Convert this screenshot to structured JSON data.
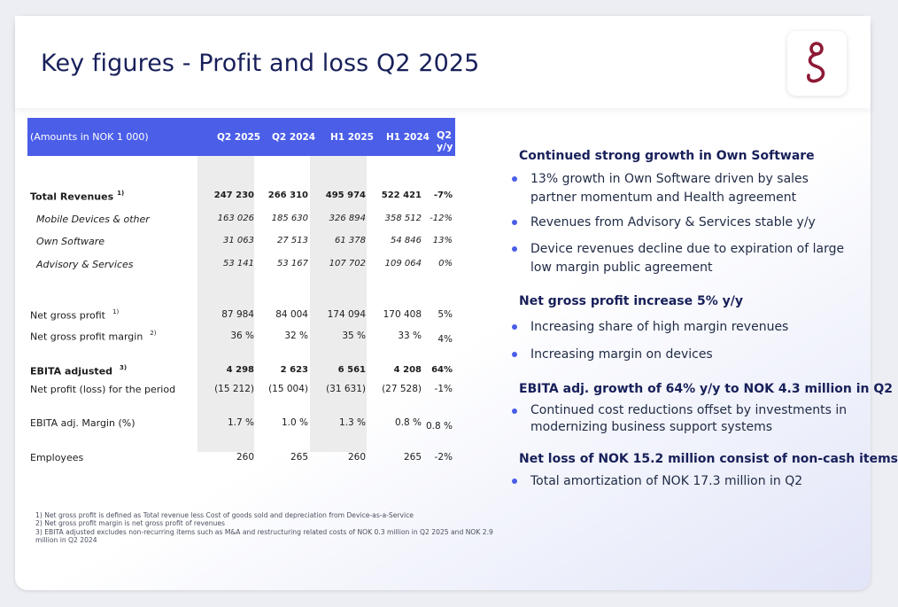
{
  "title": "Key figures - Profit and loss Q2 2025",
  "accent_color": "#4a5ee8",
  "logo_color": "#8e1a36",
  "table": {
    "header": {
      "label": "(Amounts in NOK 1 000)",
      "columns": [
        "Q2 2025",
        "Q2 2024",
        "H1 2025",
        "H1 2024",
        "Q2 y/y"
      ]
    },
    "rows": [
      {
        "label": "Total Revenues",
        "note": "1)",
        "values": [
          "247 230",
          "266 310",
          "495 974",
          "522 421",
          "-7%"
        ]
      },
      {
        "label": "Mobile Devices & other",
        "note": "",
        "values": [
          "163 026",
          "185 630",
          "326 894",
          "358 512",
          "-12%"
        ]
      },
      {
        "label": "Own Software",
        "note": "",
        "values": [
          "31 063",
          "27 513",
          "61 378",
          "54 846",
          "13%"
        ]
      },
      {
        "label": "Advisory & Services",
        "note": "",
        "values": [
          "53 141",
          "53 167",
          "107 702",
          "109 064",
          "0%"
        ]
      },
      {
        "label": "Net gross profit",
        "note": "1)",
        "values": [
          "87 984",
          "84 004",
          "174 094",
          "170 408",
          "5%"
        ]
      },
      {
        "label": "Net gross profit margin",
        "note": "2)",
        "values": [
          "36 %",
          "32 %",
          "35 %",
          "33 %",
          "4%"
        ]
      },
      {
        "label": "EBITA adjusted",
        "note": "3)",
        "values": [
          "4 298",
          "2 623",
          "6 561",
          "4 208",
          "64%"
        ]
      },
      {
        "label": "Net profit (loss) for the period",
        "note": "",
        "values": [
          "(15 212)",
          "(15 004)",
          "(31 631)",
          "(27 528)",
          "-1%"
        ]
      },
      {
        "label": "EBITA adj. Margin (%)",
        "note": "",
        "values": [
          "1.7 %",
          "1.0 %",
          "1.3 %",
          "0.8 %",
          "0.8 %"
        ]
      },
      {
        "label": "Employees",
        "note": "",
        "values": [
          "260",
          "265",
          "260",
          "265",
          "-2%"
        ]
      }
    ]
  },
  "highlights": [
    {
      "heading": "Continued strong growth in Own Software",
      "bullets": [
        "13% growth in Own Software driven by sales partner momentum and Health agreement",
        "Revenues from Advisory & Services stable y/y",
        "Device revenues decline due to expiration of large low margin public agreement"
      ]
    },
    {
      "heading": "Net gross profit increase 5% y/y",
      "bullets": [
        "Increasing share of high margin revenues",
        "Increasing margin on devices"
      ]
    },
    {
      "heading": "EBITA adj.  growth of 64% y/y to NOK 4.3 million in Q2",
      "bullets": [
        "Continued cost reductions offset by investments in modernizing business support systems"
      ]
    },
    {
      "heading": "Net loss of NOK 15.2 million consist of non-cash items",
      "bullets": [
        "Total amortization of NOK 17.3 million in Q2"
      ]
    }
  ],
  "footnotes": [
    "1) Net gross profit is defined as Total revenue less Cost of goods sold and depreciation from  Device-as-a-Service",
    "2) Net gross profit margin is net gross profit of revenues",
    "3) EBITA adjusted excludes non-recurring items such as M&A and restructuring related costs of NOK 0.3 million in Q2 2025 and NOK 2.9 million in Q2 2024"
  ]
}
